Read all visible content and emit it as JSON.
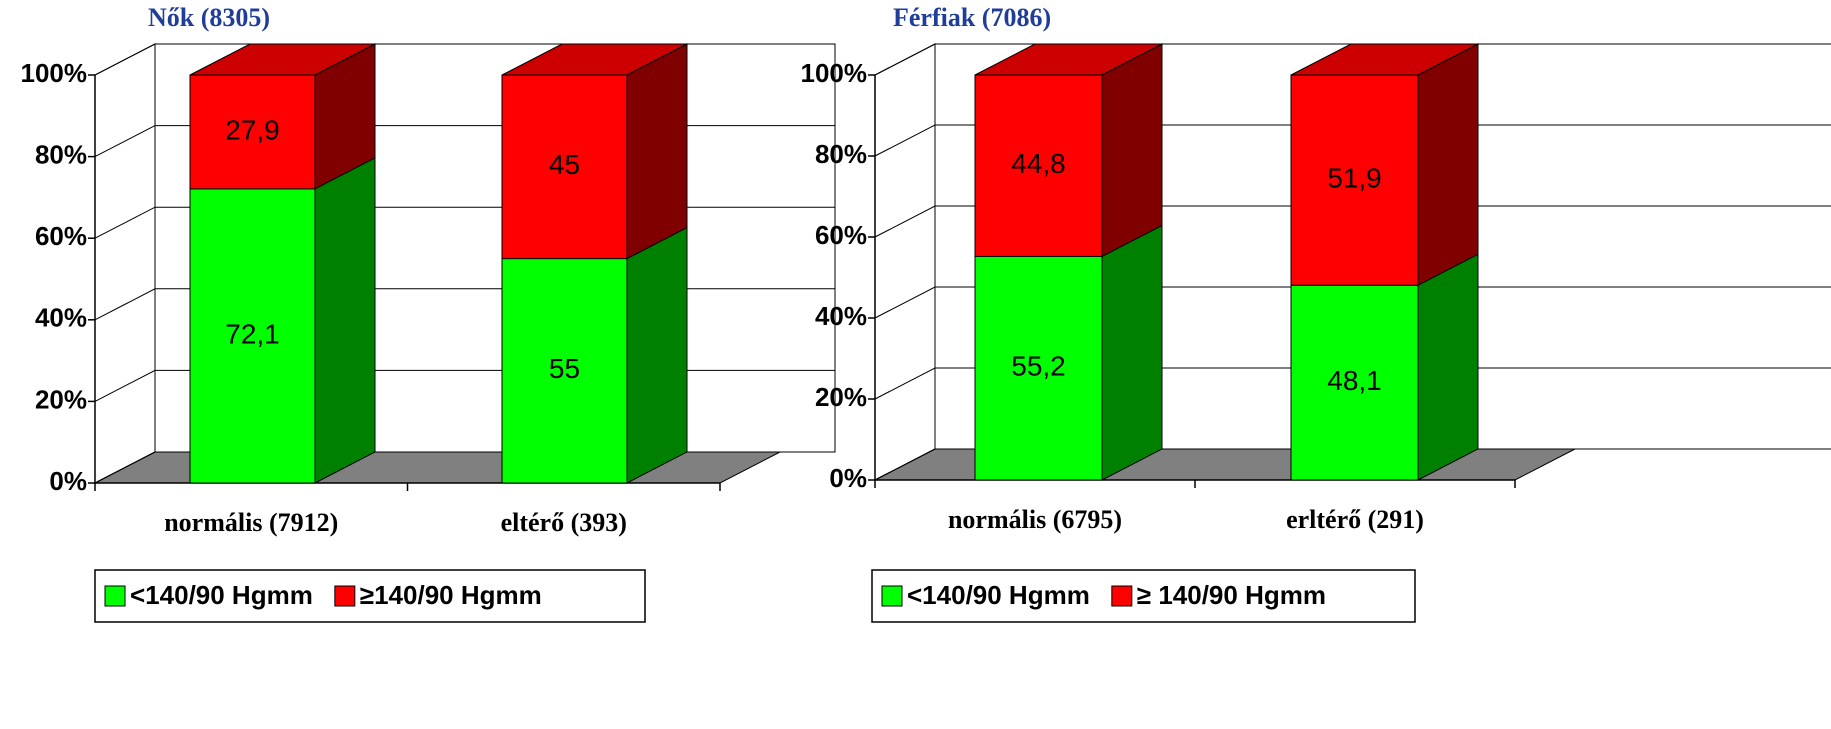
{
  "chart_data": [
    {
      "type": "bar",
      "title": "Nők (8305)",
      "categories": [
        "normális (7912)",
        "eltérő (393)"
      ],
      "series": [
        {
          "name": "<140/90 Hgmm",
          "color": "#00ff00",
          "values": [
            72.1,
            55
          ],
          "value_labels": [
            "72,1",
            "55"
          ]
        },
        {
          "name": "≥140/90 Hgmm",
          "color": "#ff0000",
          "values": [
            27.9,
            45
          ],
          "value_labels": [
            "27,9",
            "45"
          ]
        }
      ],
      "ylim": [
        0,
        100
      ],
      "yticks": [
        {
          "value": 0,
          "label": "0%"
        },
        {
          "value": 20,
          "label": "20%"
        },
        {
          "value": 40,
          "label": "40%"
        },
        {
          "value": 60,
          "label": "60%"
        },
        {
          "value": 80,
          "label": "80%"
        },
        {
          "value": 100,
          "label": "100%"
        }
      ],
      "grid": true,
      "stacked": true,
      "legend": "bottom"
    },
    {
      "type": "bar",
      "title": "Férfiak (7086)",
      "categories": [
        "normális (6795)",
        "erltérő (291)"
      ],
      "series": [
        {
          "name": "<140/90 Hgmm",
          "color": "#00ff00",
          "values": [
            55.2,
            48.1
          ],
          "value_labels": [
            "55,2",
            "48,1"
          ]
        },
        {
          "name": "≥ 140/90 Hgmm",
          "color": "#ff0000",
          "values": [
            44.8,
            51.9
          ],
          "value_labels": [
            "44,8",
            "51,9"
          ]
        }
      ],
      "ylim": [
        0,
        100
      ],
      "yticks": [
        {
          "value": 0,
          "label": "0%"
        },
        {
          "value": 20,
          "label": "20%"
        },
        {
          "value": 40,
          "label": "40%"
        },
        {
          "value": 60,
          "label": "60%"
        },
        {
          "value": 80,
          "label": "80%"
        },
        {
          "value": 100,
          "label": "100%"
        }
      ],
      "grid": true,
      "stacked": true,
      "legend": "bottom"
    }
  ]
}
